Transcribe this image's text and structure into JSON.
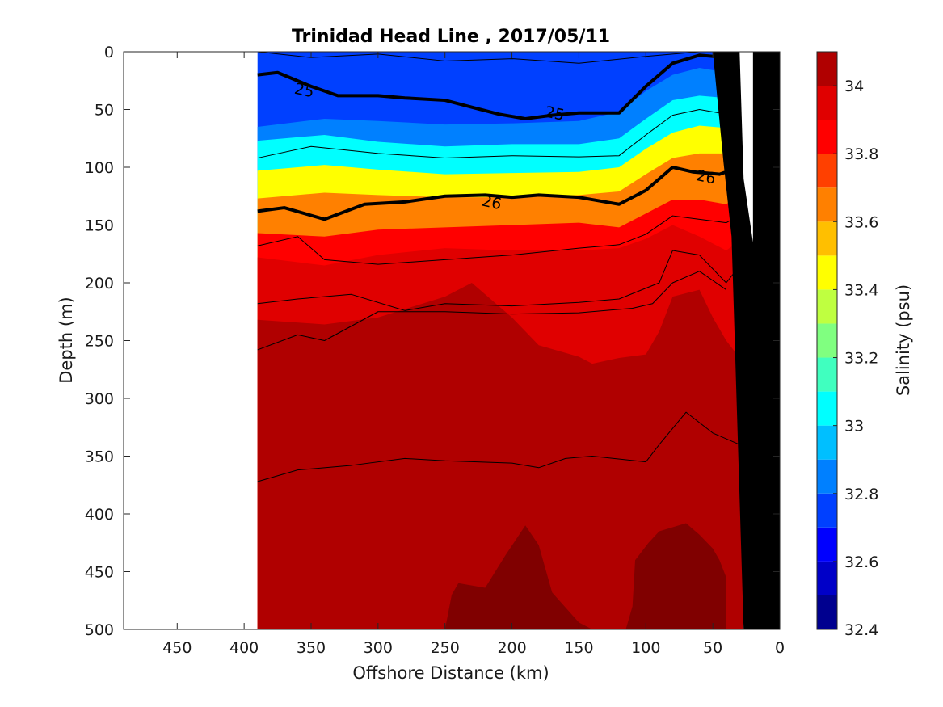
{
  "chart_data": {
    "type": "heatmap",
    "title": "Trinidad Head Line , 2017/05/11",
    "xlabel": "Offshore Distance (km)",
    "ylabel": "Depth (m)",
    "x_reversed": true,
    "y_reversed": true,
    "xlim": [
      0,
      490
    ],
    "ylim": [
      0,
      500
    ],
    "x_ticks": [
      450,
      400,
      350,
      300,
      250,
      200,
      150,
      100,
      50,
      0
    ],
    "y_ticks": [
      0,
      50,
      100,
      150,
      200,
      250,
      300,
      350,
      400,
      450,
      500
    ],
    "data_extent_km": [
      20,
      390
    ],
    "colorbar": {
      "label": "Salinity (psu)",
      "ticks": [
        32.4,
        32.6,
        32.8,
        33,
        33.2,
        33.4,
        33.6,
        33.8,
        34
      ],
      "range": [
        32.4,
        34.1
      ],
      "levels": [
        {
          "from": 32.4,
          "to": 32.5,
          "color": "#00008f"
        },
        {
          "from": 32.5,
          "to": 32.6,
          "color": "#0000c8"
        },
        {
          "from": 32.6,
          "to": 32.7,
          "color": "#0000ff"
        },
        {
          "from": 32.7,
          "to": 32.8,
          "color": "#0040ff"
        },
        {
          "from": 32.8,
          "to": 32.9,
          "color": "#0080ff"
        },
        {
          "from": 32.9,
          "to": 33.0,
          "color": "#00bfff"
        },
        {
          "from": 33.0,
          "to": 33.1,
          "color": "#00ffff"
        },
        {
          "from": 33.1,
          "to": 33.2,
          "color": "#40ffbf"
        },
        {
          "from": 33.2,
          "to": 33.3,
          "color": "#80ff80"
        },
        {
          "from": 33.3,
          "to": 33.4,
          "color": "#bfff40"
        },
        {
          "from": 33.4,
          "to": 33.5,
          "color": "#ffff00"
        },
        {
          "from": 33.5,
          "to": 33.6,
          "color": "#ffbf00"
        },
        {
          "from": 33.6,
          "to": 33.7,
          "color": "#ff8000"
        },
        {
          "from": 33.7,
          "to": 33.8,
          "color": "#ff4000"
        },
        {
          "from": 33.8,
          "to": 33.9,
          "color": "#ff0000"
        },
        {
          "from": 33.9,
          "to": 34.0,
          "color": "#e00000"
        },
        {
          "from": 34.0,
          "to": 34.1,
          "color": "#b00000"
        }
      ]
    },
    "deep_max_color": "#800000",
    "isohalines": [
      {
        "value": 32.8,
        "points": [
          [
            390,
            65
          ],
          [
            340,
            58
          ],
          [
            300,
            60
          ],
          [
            250,
            63
          ],
          [
            200,
            62
          ],
          [
            150,
            60
          ],
          [
            120,
            52
          ],
          [
            100,
            34
          ],
          [
            80,
            20
          ],
          [
            60,
            14
          ],
          [
            40,
            18
          ],
          [
            20,
            8
          ]
        ]
      },
      {
        "value": 33.0,
        "points": [
          [
            390,
            77
          ],
          [
            340,
            72
          ],
          [
            300,
            78
          ],
          [
            250,
            82
          ],
          [
            200,
            80
          ],
          [
            150,
            80
          ],
          [
            120,
            75
          ],
          [
            100,
            58
          ],
          [
            80,
            42
          ],
          [
            60,
            38
          ],
          [
            40,
            40
          ],
          [
            20,
            28
          ]
        ]
      },
      {
        "value": 33.4,
        "points": [
          [
            390,
            103
          ],
          [
            340,
            98
          ],
          [
            300,
            102
          ],
          [
            250,
            106
          ],
          [
            200,
            105
          ],
          [
            150,
            104
          ],
          [
            120,
            100
          ],
          [
            100,
            84
          ],
          [
            80,
            70
          ],
          [
            60,
            64
          ],
          [
            40,
            66
          ],
          [
            20,
            52
          ]
        ]
      },
      {
        "value": 33.6,
        "points": [
          [
            390,
            127
          ],
          [
            340,
            122
          ],
          [
            300,
            124
          ],
          [
            250,
            126
          ],
          [
            200,
            126
          ],
          [
            150,
            124
          ],
          [
            120,
            121
          ],
          [
            100,
            106
          ],
          [
            80,
            92
          ],
          [
            60,
            88
          ],
          [
            40,
            88
          ],
          [
            20,
            74
          ]
        ]
      },
      {
        "value": 33.8,
        "points": [
          [
            390,
            157
          ],
          [
            340,
            160
          ],
          [
            300,
            154
          ],
          [
            250,
            152
          ],
          [
            200,
            150
          ],
          [
            150,
            148
          ],
          [
            120,
            152
          ],
          [
            100,
            140
          ],
          [
            80,
            128
          ],
          [
            60,
            128
          ],
          [
            40,
            132
          ],
          [
            20,
            116
          ]
        ]
      },
      {
        "value": 33.9,
        "points": [
          [
            390,
            178
          ],
          [
            340,
            185
          ],
          [
            300,
            176
          ],
          [
            250,
            170
          ],
          [
            200,
            172
          ],
          [
            150,
            172
          ],
          [
            120,
            170
          ],
          [
            100,
            162
          ],
          [
            80,
            150
          ],
          [
            60,
            160
          ],
          [
            40,
            172
          ],
          [
            20,
            155
          ]
        ]
      },
      {
        "value": 34.0,
        "points": [
          [
            390,
            232
          ],
          [
            340,
            236
          ],
          [
            300,
            230
          ],
          [
            250,
            212
          ],
          [
            230,
            200
          ],
          [
            200,
            230
          ],
          [
            180,
            254
          ],
          [
            150,
            264
          ],
          [
            140,
            270
          ],
          [
            120,
            265
          ],
          [
            100,
            262
          ],
          [
            90,
            242
          ],
          [
            80,
            212
          ],
          [
            60,
            206
          ],
          [
            50,
            230
          ],
          [
            40,
            250
          ],
          [
            32,
            262
          ],
          [
            25,
            274
          ],
          [
            20,
            285
          ],
          [
            20,
            500
          ],
          [
            390,
            500
          ]
        ]
      },
      {
        "value": 34.05,
        "points": [
          [
            250,
            500
          ],
          [
            245,
            470
          ],
          [
            240,
            460
          ],
          [
            220,
            464
          ],
          [
            205,
            436
          ],
          [
            190,
            410
          ],
          [
            180,
            427
          ],
          [
            170,
            468
          ],
          [
            150,
            494
          ],
          [
            140,
            500
          ]
        ]
      },
      {
        "value": 34.05,
        "points": [
          [
            115,
            500
          ],
          [
            110,
            480
          ],
          [
            108,
            440
          ],
          [
            98,
            425
          ],
          [
            90,
            415
          ],
          [
            70,
            408
          ],
          [
            60,
            418
          ],
          [
            50,
            430
          ],
          [
            45,
            440
          ],
          [
            40,
            455
          ],
          [
            40,
            500
          ]
        ]
      }
    ],
    "density_contours": [
      {
        "value": 24.5,
        "points": [
          [
            390,
            0
          ],
          [
            350,
            5
          ],
          [
            300,
            2
          ],
          [
            250,
            8
          ],
          [
            200,
            6
          ],
          [
            150,
            10
          ],
          [
            100,
            4
          ],
          [
            60,
            0
          ]
        ]
      },
      {
        "value": 25,
        "labels": [
          {
            "x": 355,
            "y": 33
          },
          {
            "x": 168,
            "y": 53
          }
        ],
        "points": [
          [
            390,
            20
          ],
          [
            375,
            18
          ],
          [
            350,
            30
          ],
          [
            330,
            38
          ],
          [
            300,
            38
          ],
          [
            280,
            40
          ],
          [
            250,
            42
          ],
          [
            230,
            48
          ],
          [
            210,
            54
          ],
          [
            200,
            56
          ],
          [
            190,
            58
          ],
          [
            170,
            55
          ],
          [
            150,
            53
          ],
          [
            120,
            53
          ],
          [
            100,
            30
          ],
          [
            80,
            10
          ],
          [
            60,
            3
          ],
          [
            40,
            5
          ],
          [
            30,
            3
          ]
        ],
        "bold": true
      },
      {
        "value": 25.5,
        "points": [
          [
            390,
            92
          ],
          [
            350,
            82
          ],
          [
            300,
            88
          ],
          [
            250,
            92
          ],
          [
            200,
            90
          ],
          [
            150,
            91
          ],
          [
            120,
            90
          ],
          [
            100,
            72
          ],
          [
            80,
            55
          ],
          [
            60,
            50
          ],
          [
            40,
            54
          ],
          [
            20,
            40
          ]
        ]
      },
      {
        "value": 26,
        "labels": [
          {
            "x": 215,
            "y": 130
          },
          {
            "x": 55,
            "y": 108
          }
        ],
        "points": [
          [
            390,
            138
          ],
          [
            370,
            135
          ],
          [
            340,
            145
          ],
          [
            310,
            132
          ],
          [
            280,
            130
          ],
          [
            250,
            125
          ],
          [
            220,
            124
          ],
          [
            200,
            126
          ],
          [
            180,
            124
          ],
          [
            150,
            126
          ],
          [
            120,
            132
          ],
          [
            100,
            120
          ],
          [
            80,
            100
          ],
          [
            65,
            104
          ],
          [
            45,
            106
          ],
          [
            30,
            100
          ],
          [
            20,
            88
          ]
        ],
        "bold": true
      },
      {
        "value": 26.3,
        "points": [
          [
            390,
            168
          ],
          [
            360,
            160
          ],
          [
            340,
            180
          ],
          [
            300,
            184
          ],
          [
            250,
            180
          ],
          [
            200,
            176
          ],
          [
            150,
            170
          ],
          [
            120,
            167
          ],
          [
            100,
            158
          ],
          [
            80,
            142
          ],
          [
            60,
            145
          ],
          [
            40,
            148
          ],
          [
            20,
            135
          ]
        ]
      },
      {
        "value": 26.5,
        "points": [
          [
            390,
            218
          ],
          [
            360,
            214
          ],
          [
            320,
            210
          ],
          [
            280,
            224
          ],
          [
            250,
            218
          ],
          [
            200,
            220
          ],
          [
            150,
            217
          ],
          [
            120,
            214
          ],
          [
            90,
            200
          ],
          [
            80,
            172
          ],
          [
            60,
            176
          ],
          [
            40,
            200
          ],
          [
            25,
            178
          ]
        ]
      },
      {
        "value": 26.7,
        "points": [
          [
            390,
            258
          ],
          [
            360,
            245
          ],
          [
            340,
            250
          ],
          [
            300,
            225
          ],
          [
            250,
            225
          ],
          [
            200,
            227
          ],
          [
            150,
            226
          ],
          [
            110,
            222
          ],
          [
            95,
            218
          ],
          [
            80,
            200
          ],
          [
            60,
            190
          ],
          [
            40,
            206
          ]
        ]
      },
      {
        "value": 26.9,
        "points": [
          [
            390,
            372
          ],
          [
            360,
            362
          ],
          [
            320,
            358
          ],
          [
            280,
            352
          ],
          [
            250,
            354
          ],
          [
            200,
            356
          ],
          [
            180,
            360
          ],
          [
            160,
            352
          ],
          [
            140,
            350
          ],
          [
            100,
            355
          ],
          [
            90,
            340
          ],
          [
            70,
            312
          ],
          [
            50,
            330
          ],
          [
            30,
            340
          ]
        ]
      }
    ],
    "land_outline": [
      [
        27,
        500
      ],
      [
        36,
        160
      ],
      [
        42,
        96
      ],
      [
        50,
        0
      ],
      [
        0,
        0
      ],
      [
        0,
        500
      ]
    ],
    "land_color": "#000000",
    "notes_boundary": [
      [
        20,
        500
      ],
      [
        20,
        190
      ],
      [
        27,
        178
      ],
      [
        27,
        500
      ]
    ]
  }
}
